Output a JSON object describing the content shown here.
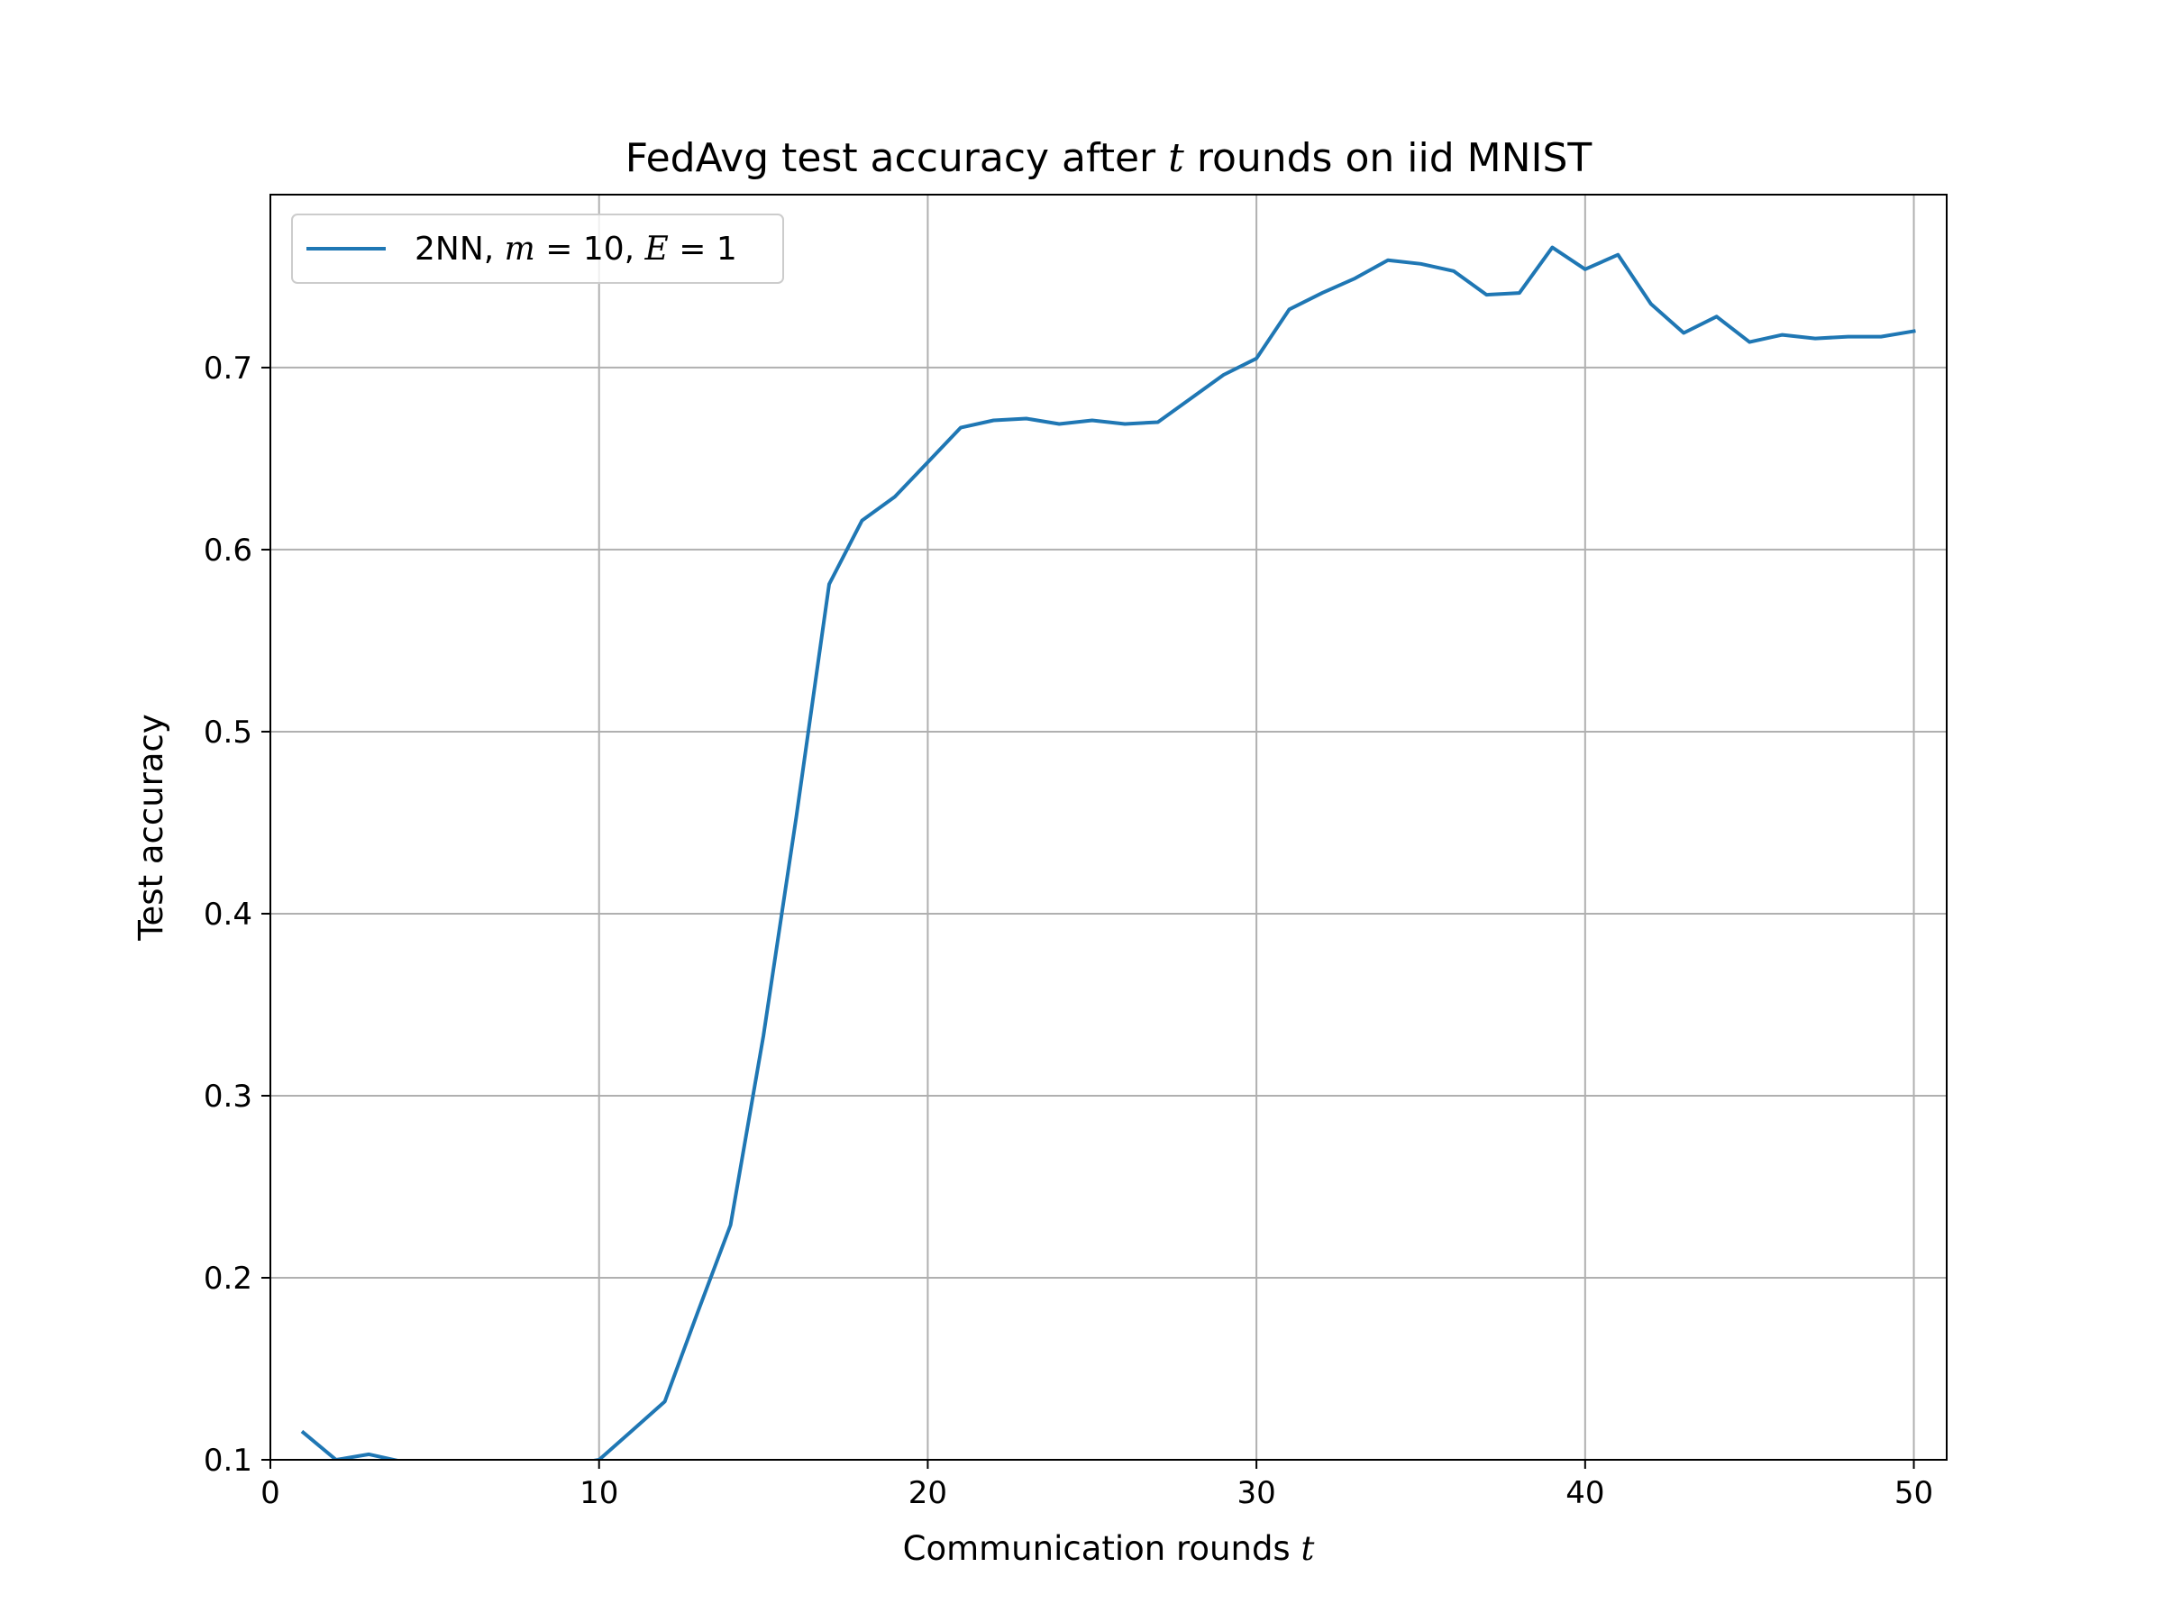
{
  "chart_data": {
    "type": "line",
    "title": {
      "pre": "FedAvg test accuracy after ",
      "var": "t",
      "post": " rounds on iid MNIST"
    },
    "xlabel": {
      "pre": "Communication rounds ",
      "var": "t"
    },
    "ylabel": "Test accuracy",
    "xlim": [
      0,
      51
    ],
    "ylim": [
      0.1,
      0.795
    ],
    "xticks": [
      0,
      10,
      20,
      30,
      40,
      50
    ],
    "xtick_labels": [
      "0",
      "10",
      "20",
      "30",
      "40",
      "50"
    ],
    "yticks": [
      0.1,
      0.2,
      0.3,
      0.4,
      0.5,
      0.6,
      0.7
    ],
    "ytick_labels": [
      "0.1",
      "0.2",
      "0.3",
      "0.4",
      "0.5",
      "0.6",
      "0.7"
    ],
    "grid": true,
    "legend_position": "top-left",
    "series": [
      {
        "legend": {
          "pre": "2NN, ",
          "m": "m",
          "m_val": " = 10, ",
          "e": "E",
          "e_val": " = 1"
        },
        "color": "#1f77b4",
        "x": [
          1,
          2,
          3,
          4,
          5,
          6,
          7,
          8,
          9,
          10,
          11,
          12,
          13,
          14,
          15,
          16,
          17,
          18,
          19,
          20,
          21,
          22,
          23,
          24,
          25,
          26,
          27,
          28,
          29,
          30,
          31,
          32,
          33,
          34,
          35,
          36,
          37,
          38,
          39,
          40,
          41,
          42,
          43,
          44,
          45,
          46,
          47,
          48,
          49,
          50
        ],
        "y": [
          0.115,
          0.1,
          0.103,
          0.099,
          0.098,
          0.097,
          0.097,
          0.097,
          0.097,
          0.1,
          0.116,
          0.132,
          0.181,
          0.229,
          0.333,
          0.453,
          0.581,
          0.616,
          0.629,
          0.648,
          0.667,
          0.671,
          0.672,
          0.669,
          0.671,
          0.669,
          0.67,
          0.683,
          0.696,
          0.705,
          0.732,
          0.741,
          0.749,
          0.759,
          0.757,
          0.753,
          0.74,
          0.741,
          0.766,
          0.754,
          0.762,
          0.735,
          0.719,
          0.728,
          0.714,
          0.718,
          0.716,
          0.717,
          0.717,
          0.72
        ]
      }
    ]
  }
}
